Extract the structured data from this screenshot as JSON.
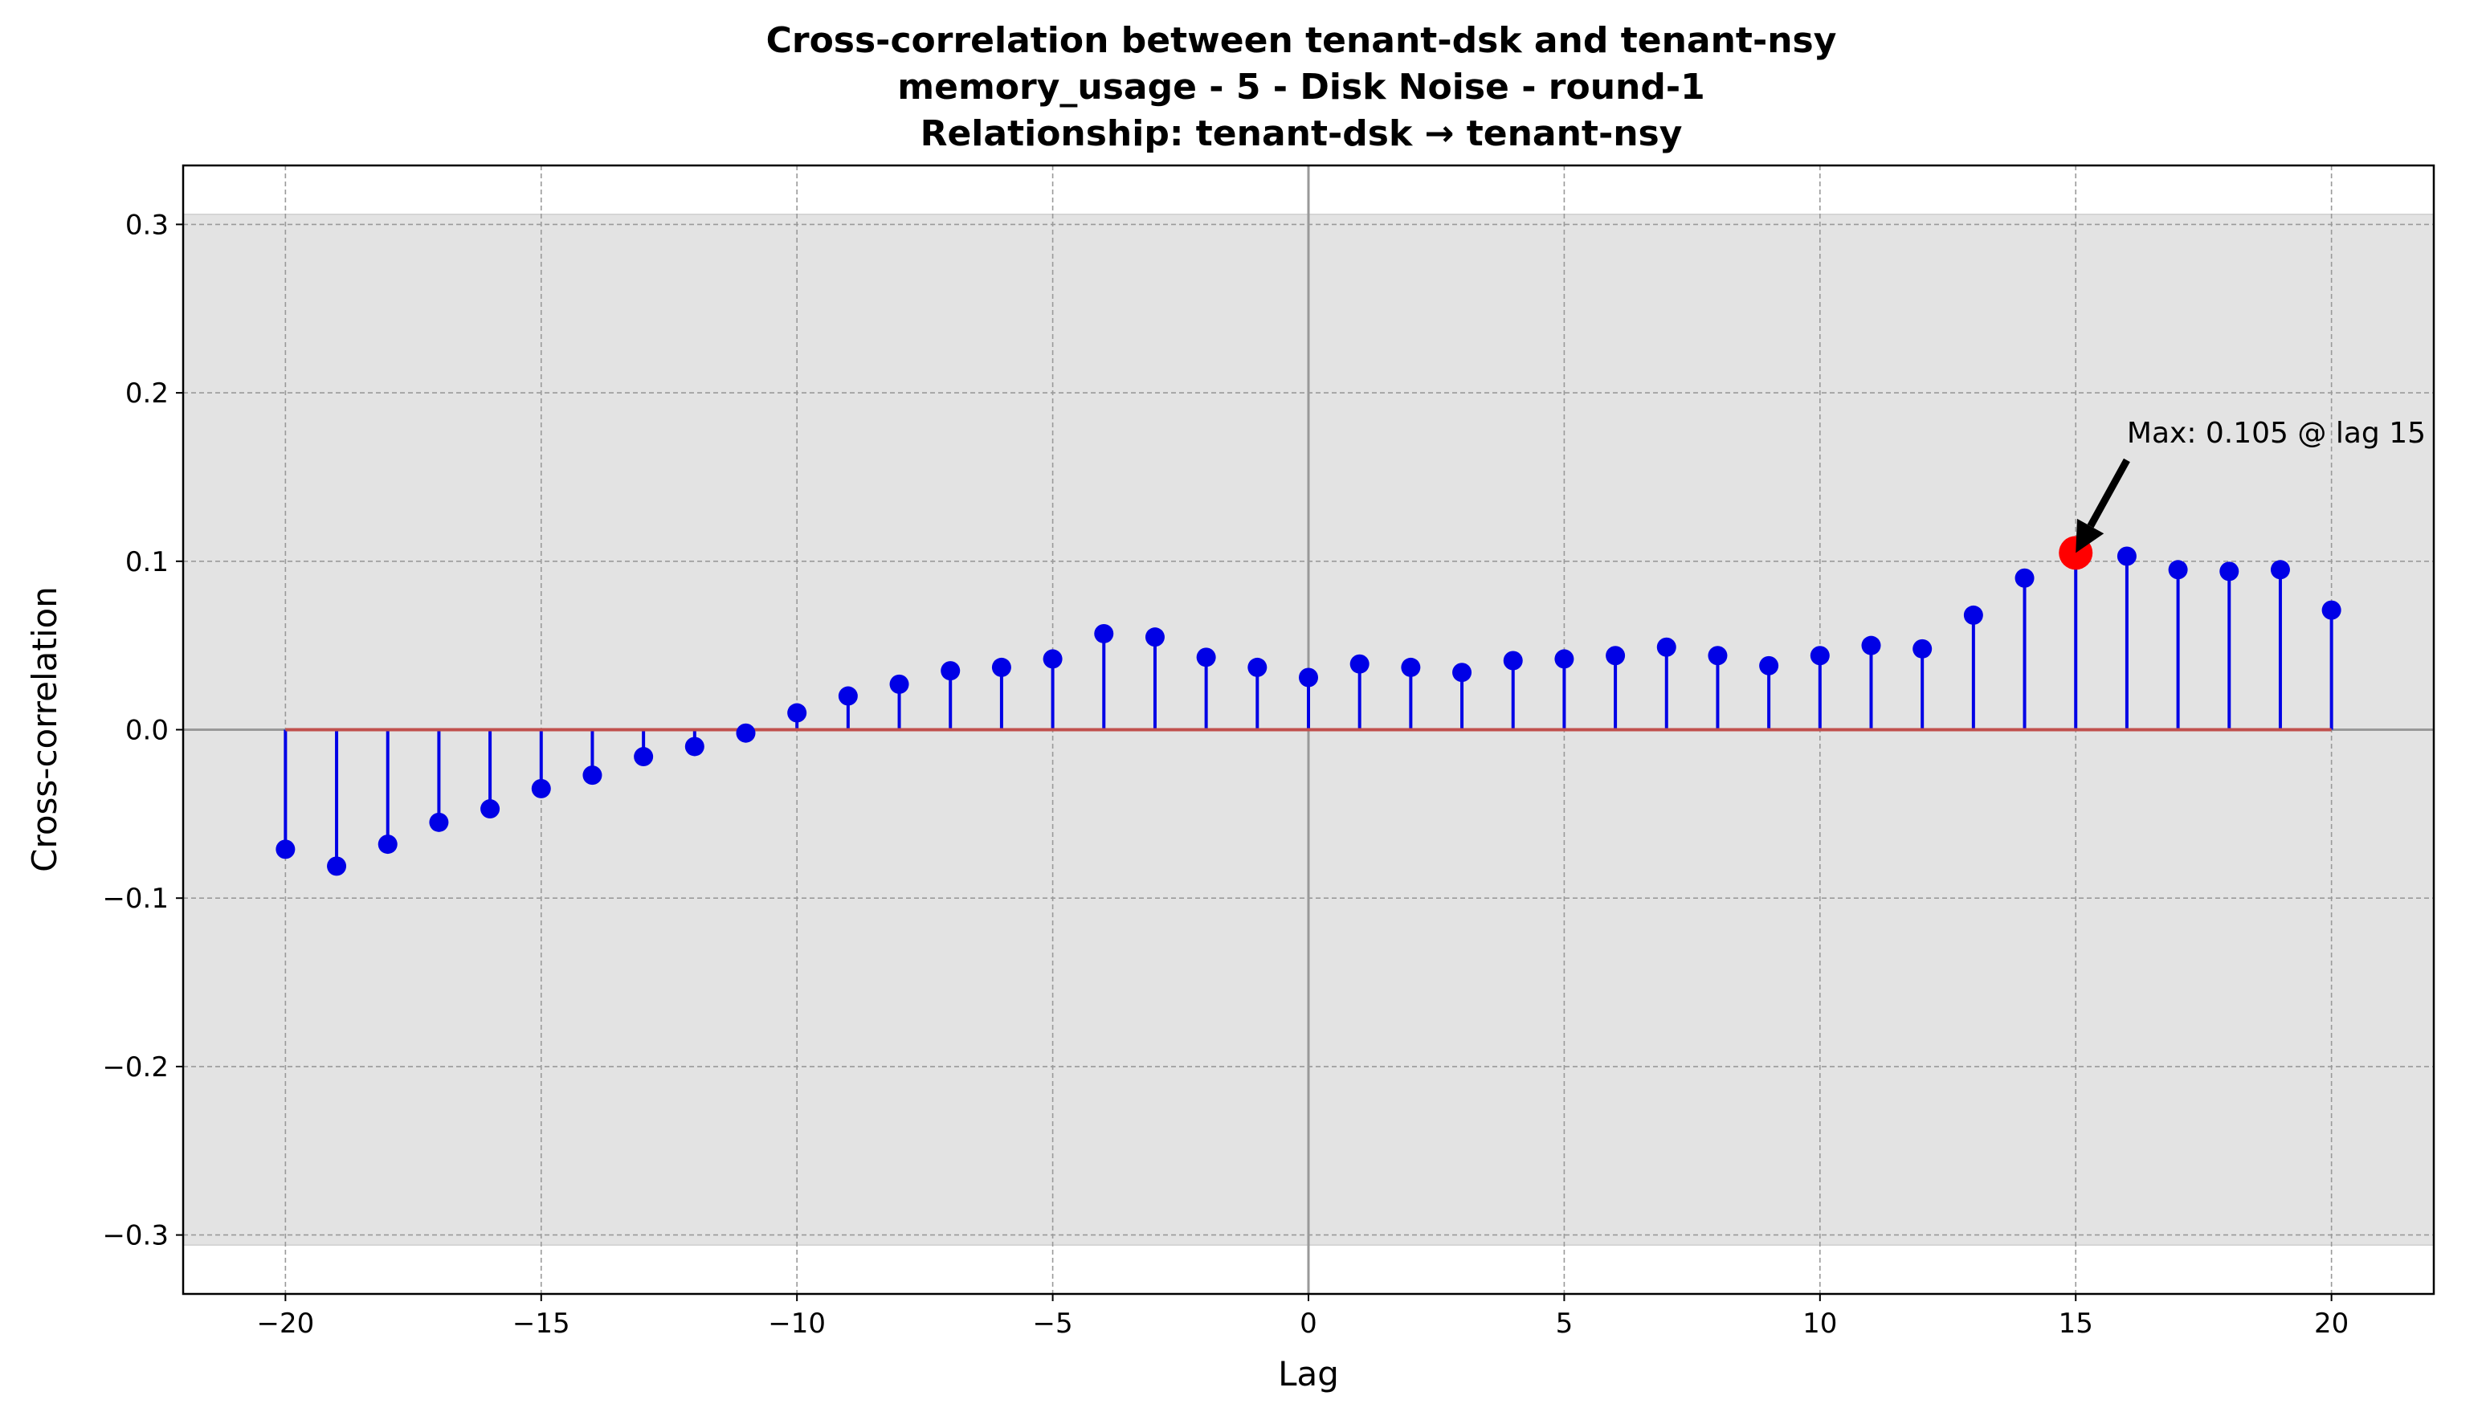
{
  "chart_data": {
    "type": "stem",
    "title": [
      "Cross-correlation between tenant-dsk and tenant-nsy",
      "memory_usage - 5 - Disk Noise - round-1",
      "Relationship: tenant-dsk → tenant-nsy"
    ],
    "xlabel": "Lag",
    "ylabel": "Cross-correlation",
    "xlim": [
      -22,
      22
    ],
    "ylim": [
      -0.335,
      0.335
    ],
    "xticks": [
      -20,
      -15,
      -10,
      -5,
      0,
      5,
      10,
      15,
      20
    ],
    "xtick_labels": [
      "−20",
      "−15",
      "−10",
      "−5",
      "0",
      "5",
      "10",
      "15",
      "20"
    ],
    "yticks": [
      -0.3,
      -0.2,
      -0.1,
      0.0,
      0.1,
      0.2,
      0.3
    ],
    "ytick_labels": [
      "−0.3",
      "−0.2",
      "−0.1",
      "0.0",
      "0.1",
      "0.2",
      "0.3"
    ],
    "grid": true,
    "confidence_band": [
      -0.306,
      0.306
    ],
    "lags": [
      -20,
      -19,
      -18,
      -17,
      -16,
      -15,
      -14,
      -13,
      -12,
      -11,
      -10,
      -9,
      -8,
      -7,
      -6,
      -5,
      -4,
      -3,
      -2,
      -1,
      0,
      1,
      2,
      3,
      4,
      5,
      6,
      7,
      8,
      9,
      10,
      11,
      12,
      13,
      14,
      15,
      16,
      17,
      18,
      19,
      20
    ],
    "values": [
      -0.071,
      -0.081,
      -0.068,
      -0.055,
      -0.047,
      -0.035,
      -0.027,
      -0.016,
      -0.01,
      -0.002,
      0.01,
      0.02,
      0.027,
      0.035,
      0.037,
      0.042,
      0.057,
      0.055,
      0.043,
      0.037,
      0.031,
      0.039,
      0.037,
      0.034,
      0.041,
      0.042,
      0.044,
      0.049,
      0.044,
      0.038,
      0.044,
      0.05,
      0.048,
      0.068,
      0.09,
      0.105,
      0.103,
      0.095,
      0.094,
      0.095,
      0.071
    ],
    "max": {
      "lag": 15,
      "value": 0.105,
      "label": "Max: 0.105 @ lag 15"
    },
    "colors": {
      "stem": "#0000e6",
      "marker": "#0000e6",
      "baseline": "#c0504d",
      "max_marker": "#ff0000",
      "band": "#e3e3e3",
      "grid": "#9a9a9a",
      "zero_line": "#999999"
    }
  }
}
